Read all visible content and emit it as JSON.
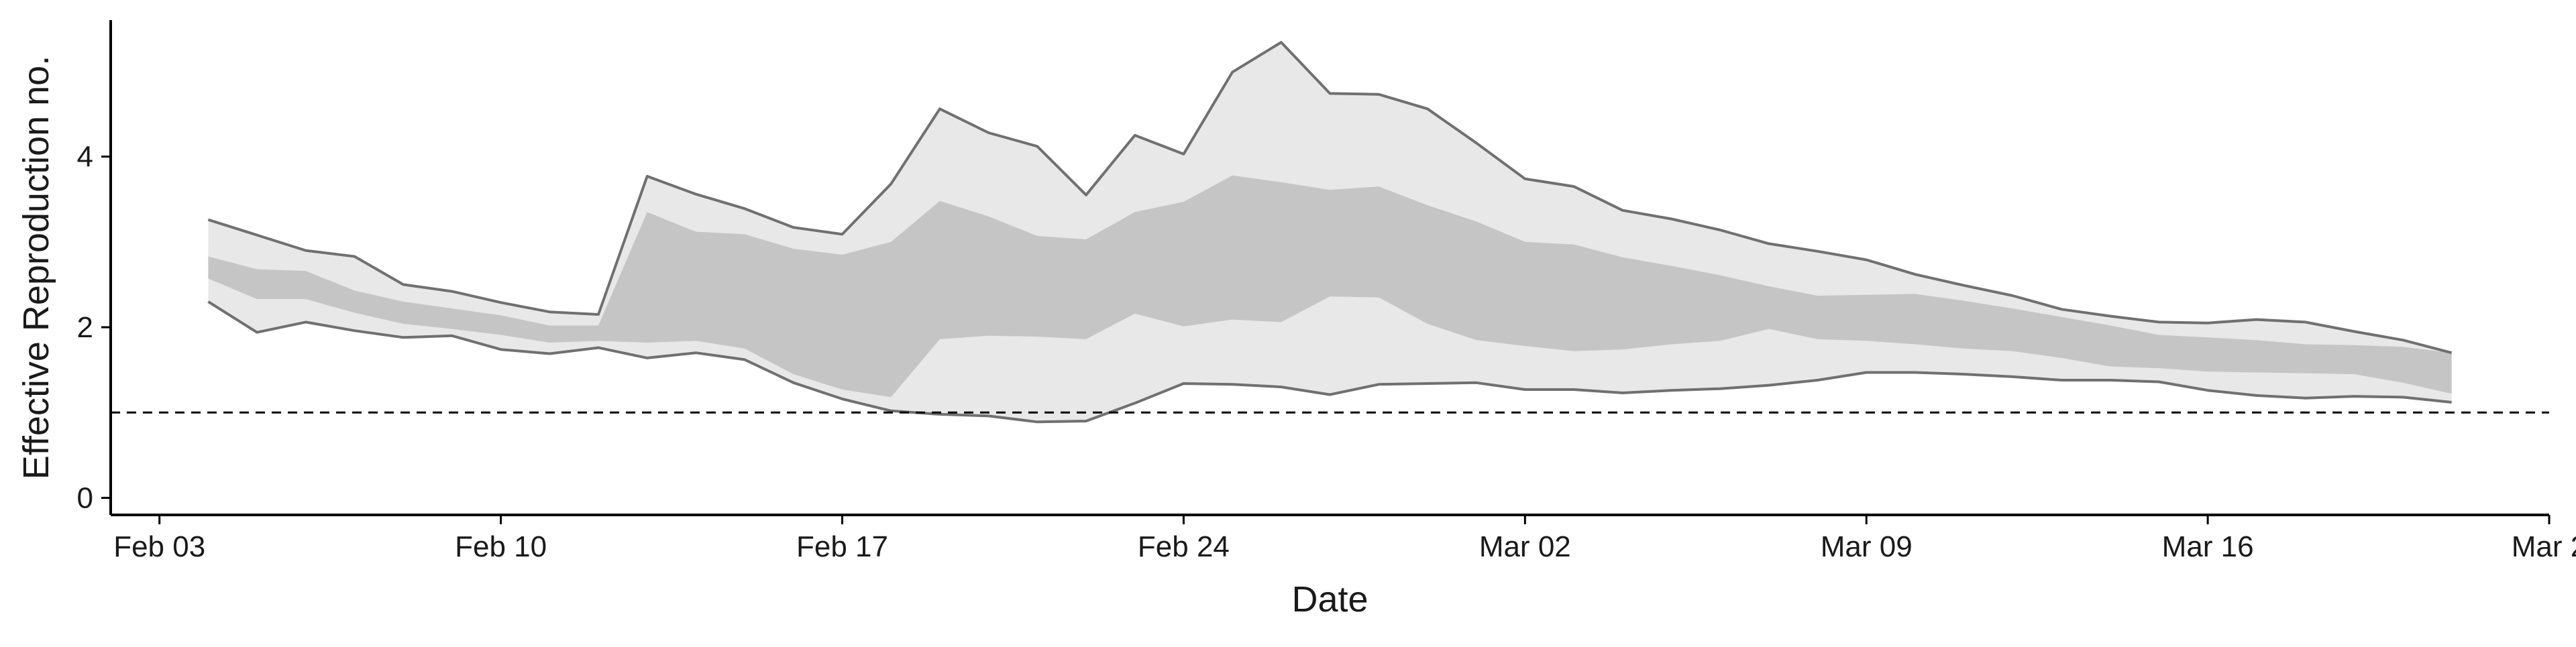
{
  "chart_data": {
    "type": "area",
    "xlabel": "Date",
    "ylabel": "Effective Reproduction no.",
    "x_ticks": [
      {
        "date": "2020-02-03",
        "label": "Feb 03"
      },
      {
        "date": "2020-02-10",
        "label": "Feb 10"
      },
      {
        "date": "2020-02-17",
        "label": "Feb 17"
      },
      {
        "date": "2020-02-24",
        "label": "Feb 24"
      },
      {
        "date": "2020-03-02",
        "label": "Mar 02"
      },
      {
        "date": "2020-03-09",
        "label": "Mar 09"
      },
      {
        "date": "2020-03-16",
        "label": "Mar 16"
      },
      {
        "date": "2020-03-23",
        "label": "Mar 2"
      }
    ],
    "y_ticks": [
      0,
      2,
      4
    ],
    "xlim": [
      "2020-02-02",
      "2020-03-23"
    ],
    "ylim": [
      -0.2,
      5.6
    ],
    "reference_line": {
      "y": 1,
      "style": "dashed"
    },
    "grid": false,
    "series": [
      {
        "x": [
          "2020-02-04",
          "2020-02-05",
          "2020-02-06",
          "2020-02-07",
          "2020-02-08",
          "2020-02-09",
          "2020-02-10",
          "2020-02-11",
          "2020-02-12",
          "2020-02-13",
          "2020-02-14",
          "2020-02-15",
          "2020-02-16",
          "2020-02-17",
          "2020-02-18",
          "2020-02-19",
          "2020-02-20",
          "2020-02-21",
          "2020-02-22",
          "2020-02-23",
          "2020-02-24",
          "2020-02-25",
          "2020-02-26",
          "2020-02-27",
          "2020-02-28",
          "2020-02-29",
          "2020-03-01",
          "2020-03-02",
          "2020-03-03",
          "2020-03-04",
          "2020-03-05",
          "2020-03-06",
          "2020-03-07",
          "2020-03-08",
          "2020-03-09",
          "2020-03-10",
          "2020-03-11",
          "2020-03-12",
          "2020-03-13",
          "2020-03-14",
          "2020-03-15",
          "2020-03-16",
          "2020-03-17",
          "2020-03-18",
          "2020-03-19",
          "2020-03-20",
          "2020-03-21"
        ],
        "upper_90": [
          3.26,
          3.08,
          2.9,
          2.83,
          2.5,
          2.42,
          2.29,
          2.18,
          2.15,
          3.77,
          3.56,
          3.39,
          3.17,
          3.09,
          3.68,
          4.56,
          4.28,
          4.12,
          3.55,
          4.25,
          4.03,
          4.99,
          5.34,
          4.74,
          4.73,
          4.56,
          4.16,
          3.74,
          3.65,
          3.37,
          3.27,
          3.14,
          2.98,
          2.89,
          2.79,
          2.62,
          2.49,
          2.37,
          2.21,
          2.13,
          2.06,
          2.05,
          2.09,
          2.06,
          1.95,
          1.85,
          1.7
        ],
        "upper_50": [
          2.83,
          2.68,
          2.66,
          2.43,
          2.3,
          2.22,
          2.14,
          2.02,
          2.02,
          3.35,
          3.12,
          3.09,
          2.92,
          2.85,
          3.0,
          3.48,
          3.3,
          3.07,
          3.03,
          3.35,
          3.47,
          3.78,
          3.7,
          3.61,
          3.65,
          3.43,
          3.24,
          3.0,
          2.97,
          2.82,
          2.72,
          2.61,
          2.48,
          2.37,
          2.38,
          2.39,
          2.31,
          2.22,
          2.12,
          2.02,
          1.91,
          1.88,
          1.85,
          1.8,
          1.79,
          1.77,
          1.7
        ],
        "lower_50": [
          2.57,
          2.33,
          2.33,
          2.17,
          2.04,
          1.98,
          1.91,
          1.82,
          1.84,
          1.82,
          1.84,
          1.75,
          1.45,
          1.27,
          1.18,
          1.86,
          1.9,
          1.89,
          1.86,
          2.16,
          2.01,
          2.09,
          2.06,
          2.36,
          2.35,
          2.04,
          1.85,
          1.78,
          1.72,
          1.74,
          1.8,
          1.84,
          1.98,
          1.86,
          1.84,
          1.8,
          1.75,
          1.72,
          1.64,
          1.54,
          1.52,
          1.48,
          1.47,
          1.46,
          1.45,
          1.35,
          1.22
        ],
        "lower_90": [
          2.3,
          1.94,
          2.06,
          1.96,
          1.88,
          1.9,
          1.74,
          1.69,
          1.76,
          1.64,
          1.7,
          1.62,
          1.35,
          1.16,
          1.02,
          0.98,
          0.96,
          0.89,
          0.9,
          1.11,
          1.34,
          1.33,
          1.3,
          1.21,
          1.33,
          1.34,
          1.35,
          1.27,
          1.27,
          1.23,
          1.26,
          1.28,
          1.32,
          1.38,
          1.47,
          1.47,
          1.45,
          1.42,
          1.38,
          1.38,
          1.36,
          1.26,
          1.2,
          1.17,
          1.19,
          1.18,
          1.12
        ],
        "colors": {
          "band_90": "#e8e8e8",
          "band_50": "#c5c5c5",
          "line": "#707070"
        }
      }
    ]
  }
}
